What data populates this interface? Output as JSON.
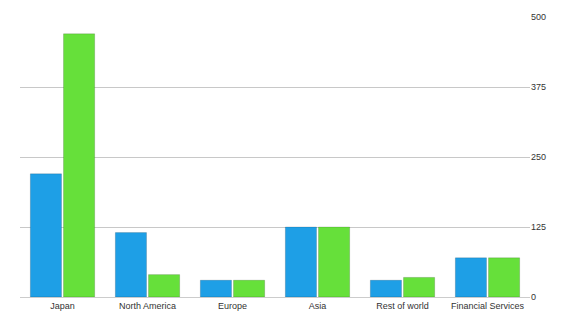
{
  "chart_data": {
    "type": "bar",
    "categories": [
      "Japan",
      "North America",
      "Europe",
      "Asia",
      "Rest of world",
      "Financial Services"
    ],
    "series": [
      {
        "color": "#1e9fe6",
        "values": [
          220,
          115,
          30,
          125,
          30,
          70
        ]
      },
      {
        "color": "#66e03a",
        "values": [
          470,
          40,
          30,
          125,
          35,
          70
        ]
      }
    ],
    "ylim": [
      0,
      500
    ],
    "yticks": [
      0,
      125,
      250,
      375,
      500
    ],
    "grid": true
  }
}
